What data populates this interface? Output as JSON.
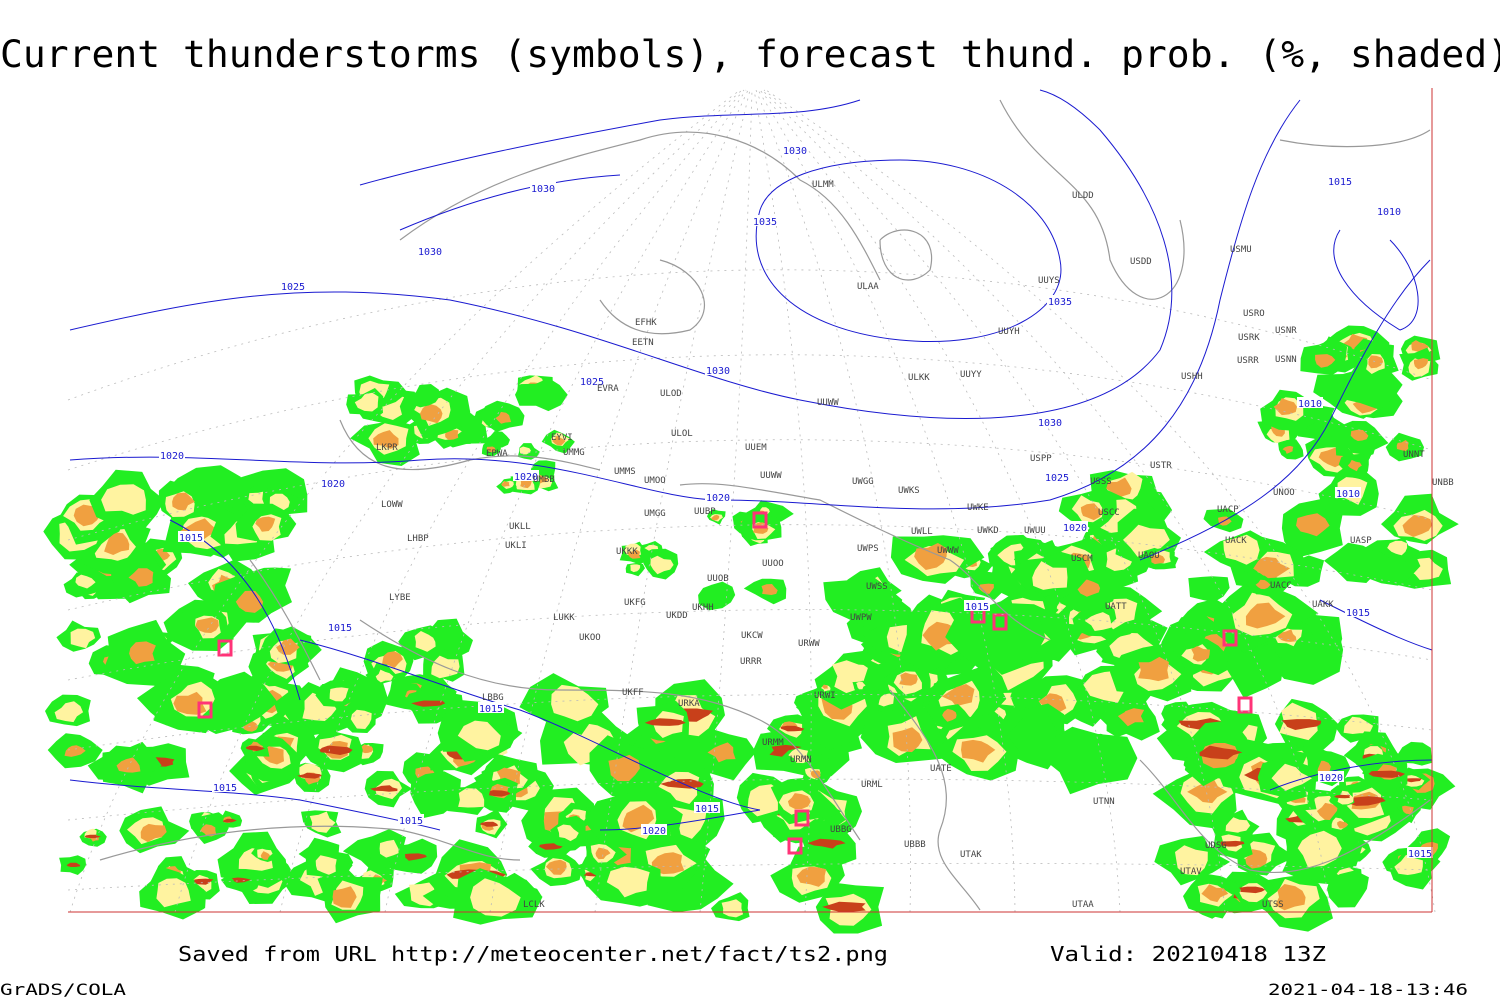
{
  "header": {
    "title": "Current thunderstorms (symbols), forecast thund. prob. (%, shaded)"
  },
  "footer": {
    "source": "Saved from URL http://meteocenter.net/fact/ts2.png",
    "valid": "Valid: 20210418 13Z",
    "software": "GrADS/COLA",
    "timestamp": "2021-04-18-13:46"
  },
  "isobar_labels": [
    "1030",
    "1030",
    "1030",
    "1035",
    "1035",
    "1025",
    "1025",
    "1030",
    "1030",
    "1020",
    "1020",
    "1020",
    "1020",
    "1025",
    "1020",
    "1015",
    "1010",
    "1010",
    "1010",
    "1015",
    "1015",
    "1015",
    "1015",
    "1015",
    "1015",
    "1015",
    "1015",
    "1020",
    "1020",
    "1015"
  ],
  "stations": [
    "ULMM",
    "ULDD",
    "USDD",
    "USMU",
    "ULAA",
    "UUYS",
    "EFHK",
    "EETN",
    "UUYH",
    "USRO",
    "USRK",
    "USNR",
    "USRR",
    "USNN",
    "ULKK",
    "UUYY",
    "USHH",
    "EVRA",
    "ULOD",
    "UUWW",
    "UMMG",
    "ULOL",
    "UUEM",
    "USPP",
    "USTR",
    "UNNT",
    "EYVI",
    "EPWA",
    "UMMS",
    "UMOO",
    "UUWW",
    "UWGG",
    "UWKS",
    "USSS",
    "UNOO",
    "UNBB",
    "LKPR",
    "LOWW",
    "UMBB",
    "UMGG",
    "UUBP",
    "UWKE",
    "USCC",
    "UACP",
    "UKLL",
    "UKLI",
    "LHBP",
    "UKKK",
    "UUOO",
    "UWPS",
    "UWLL",
    "UWWW",
    "UWKD",
    "UWUU",
    "USCM",
    "UAOU",
    "UACK",
    "UASP",
    "LYBE",
    "UUOB",
    "UWSS",
    "UATT",
    "UACC",
    "UAKK",
    "LUKK",
    "UKHH",
    "UKFG",
    "UKDD",
    "UKOO",
    "UKCW",
    "URWW",
    "UWPW",
    "URRR",
    "URWI",
    "UKFF",
    "URKA",
    "URMM",
    "URMN",
    "UATE",
    "URML",
    "UBBB",
    "UTAK",
    "UTNN",
    "UBBG",
    "LCLK",
    "UTAA",
    "UTSS",
    "UTAV",
    "LBBG",
    "UDSG"
  ]
}
